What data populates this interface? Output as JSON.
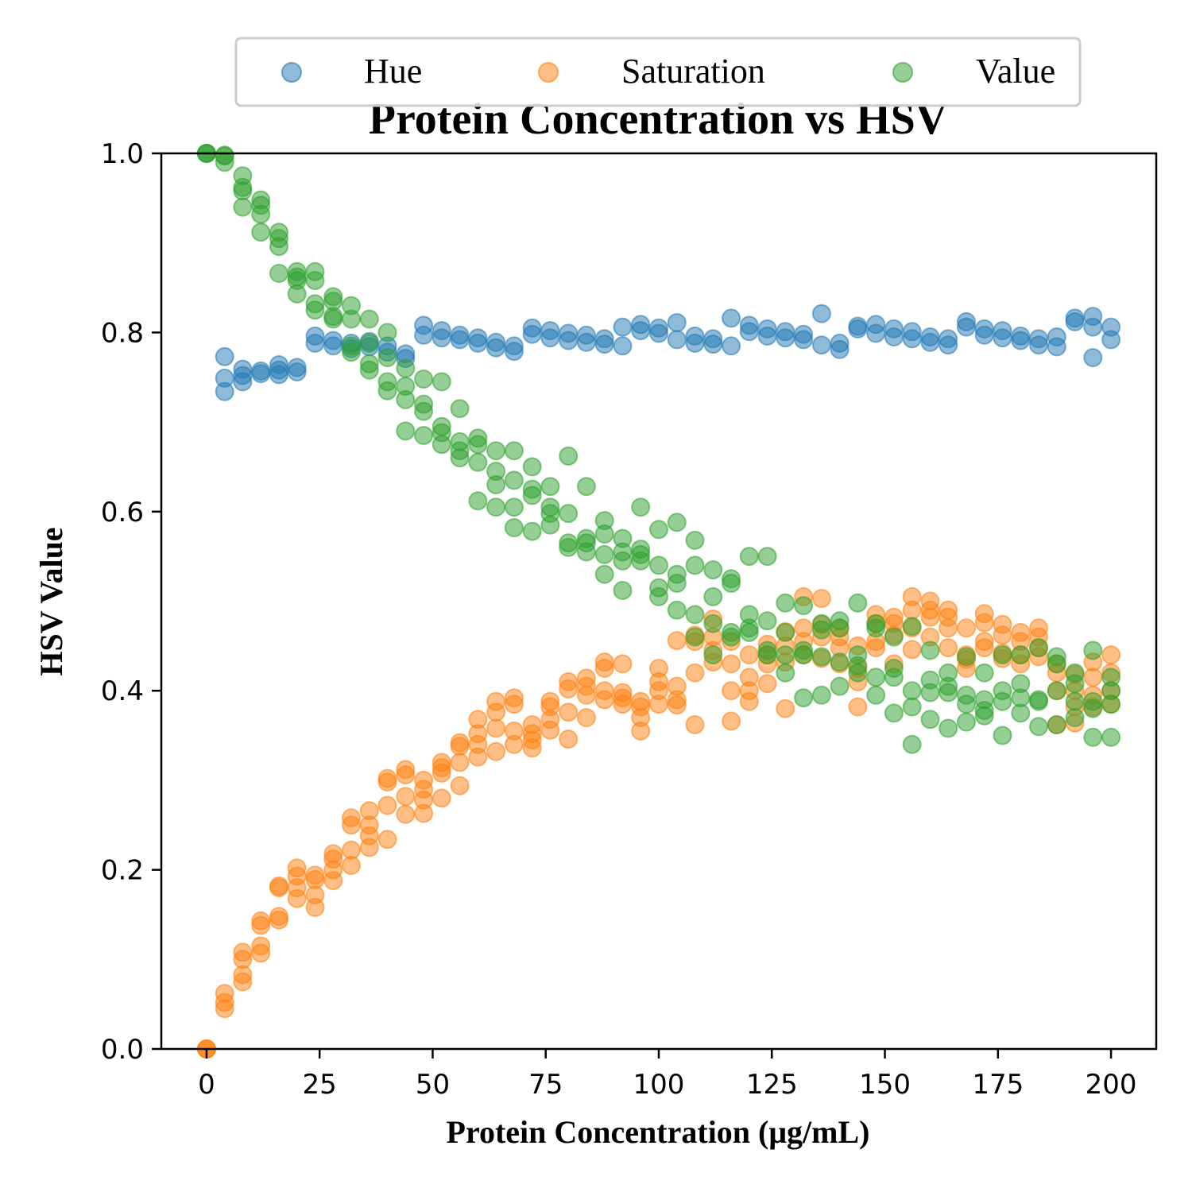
{
  "chart_data": {
    "type": "scatter",
    "title": "Protein Concentration vs HSV",
    "xlabel": "Protein Concentration (μg/mL)",
    "ylabel": "HSV Value",
    "xlim": [
      -10,
      210
    ],
    "ylim": [
      0.0,
      1.0
    ],
    "xticks": [
      0,
      25,
      50,
      75,
      100,
      125,
      150,
      175,
      200
    ],
    "yticks": [
      0.0,
      0.2,
      0.4,
      0.6,
      0.8,
      1.0
    ],
    "ytick_labels": [
      "0.0",
      "0.2",
      "0.4",
      "0.6",
      "0.8",
      "1.0"
    ],
    "grid": false,
    "legend_position": "top-center",
    "series": [
      {
        "name": "Hue",
        "color": "#1f77b4",
        "x": [
          4,
          4,
          4,
          8,
          8,
          8,
          12,
          12,
          16,
          16,
          16,
          20,
          20,
          24,
          24,
          28,
          28,
          32,
          32,
          36,
          36,
          40,
          40,
          44,
          44,
          48,
          48,
          52,
          52,
          56,
          56,
          60,
          60,
          64,
          64,
          68,
          68,
          72,
          72,
          76,
          76,
          80,
          80,
          84,
          84,
          88,
          88,
          92,
          92,
          96,
          96,
          100,
          100,
          104,
          104,
          108,
          108,
          112,
          112,
          116,
          116,
          120,
          120,
          124,
          124,
          128,
          128,
          132,
          132,
          136,
          136,
          140,
          140,
          144,
          144,
          148,
          148,
          152,
          152,
          156,
          156,
          160,
          160,
          164,
          164,
          168,
          168,
          172,
          172,
          176,
          176,
          180,
          180,
          184,
          184,
          188,
          188,
          192,
          192,
          196,
          196,
          196,
          200,
          200
        ],
        "y": [
          0.773,
          0.749,
          0.734,
          0.759,
          0.752,
          0.745,
          0.757,
          0.754,
          0.764,
          0.758,
          0.753,
          0.761,
          0.756,
          0.796,
          0.788,
          0.791,
          0.785,
          0.788,
          0.782,
          0.79,
          0.784,
          0.785,
          0.778,
          0.776,
          0.771,
          0.808,
          0.797,
          0.802,
          0.794,
          0.797,
          0.792,
          0.794,
          0.788,
          0.789,
          0.783,
          0.785,
          0.779,
          0.805,
          0.798,
          0.802,
          0.794,
          0.799,
          0.791,
          0.797,
          0.789,
          0.793,
          0.787,
          0.806,
          0.785,
          0.809,
          0.802,
          0.805,
          0.799,
          0.811,
          0.792,
          0.796,
          0.788,
          0.793,
          0.787,
          0.816,
          0.785,
          0.808,
          0.801,
          0.804,
          0.796,
          0.801,
          0.794,
          0.798,
          0.792,
          0.821,
          0.786,
          0.788,
          0.781,
          0.807,
          0.804,
          0.809,
          0.799,
          0.804,
          0.795,
          0.801,
          0.793,
          0.795,
          0.789,
          0.793,
          0.786,
          0.812,
          0.806,
          0.804,
          0.797,
          0.802,
          0.794,
          0.796,
          0.791,
          0.793,
          0.786,
          0.795,
          0.784,
          0.816,
          0.812,
          0.818,
          0.806,
          0.772,
          0.806,
          0.792
        ]
      },
      {
        "name": "Saturation",
        "color": "#ff7f0e",
        "x": [
          0,
          0,
          0,
          4,
          4,
          4,
          8,
          8,
          8,
          8,
          12,
          12,
          12,
          12,
          16,
          16,
          16,
          16,
          20,
          20,
          20,
          20,
          24,
          24,
          24,
          24,
          28,
          28,
          28,
          28,
          32,
          32,
          32,
          32,
          36,
          36,
          36,
          36,
          40,
          40,
          40,
          40,
          44,
          44,
          44,
          44,
          48,
          48,
          48,
          48,
          52,
          52,
          52,
          52,
          56,
          56,
          56,
          56,
          60,
          60,
          60,
          60,
          64,
          64,
          64,
          64,
          68,
          68,
          68,
          68,
          72,
          72,
          72,
          72,
          76,
          76,
          76,
          76,
          80,
          80,
          80,
          80,
          84,
          84,
          84,
          84,
          88,
          88,
          88,
          88,
          92,
          92,
          92,
          92,
          96,
          96,
          96,
          96,
          100,
          100,
          100,
          100,
          104,
          104,
          104,
          104,
          108,
          108,
          108,
          108,
          112,
          112,
          112,
          112,
          116,
          116,
          116,
          116,
          120,
          120,
          120,
          120,
          124,
          124,
          124,
          124,
          128,
          128,
          128,
          128,
          132,
          132,
          132,
          132,
          136,
          136,
          136,
          136,
          140,
          140,
          140,
          140,
          144,
          144,
          144,
          144,
          148,
          148,
          148,
          148,
          152,
          152,
          152,
          152,
          156,
          156,
          156,
          156,
          160,
          160,
          160,
          160,
          164,
          164,
          164,
          164,
          168,
          168,
          168,
          168,
          172,
          172,
          172,
          172,
          176,
          176,
          176,
          176,
          180,
          180,
          180,
          180,
          184,
          184,
          184,
          184,
          188,
          188,
          188,
          188,
          192,
          192,
          192,
          192,
          196,
          196,
          196,
          196,
          200,
          200,
          200,
          200
        ],
        "y": [
          0.0,
          0.0,
          0.0,
          0.062,
          0.052,
          0.045,
          0.108,
          0.1,
          0.083,
          0.075,
          0.143,
          0.138,
          0.115,
          0.107,
          0.182,
          0.18,
          0.148,
          0.144,
          0.202,
          0.193,
          0.18,
          0.168,
          0.194,
          0.189,
          0.172,
          0.158,
          0.218,
          0.212,
          0.2,
          0.188,
          0.258,
          0.25,
          0.222,
          0.205,
          0.266,
          0.25,
          0.238,
          0.225,
          0.302,
          0.298,
          0.272,
          0.234,
          0.312,
          0.306,
          0.282,
          0.262,
          0.3,
          0.29,
          0.278,
          0.263,
          0.32,
          0.314,
          0.308,
          0.28,
          0.342,
          0.338,
          0.32,
          0.294,
          0.368,
          0.352,
          0.34,
          0.326,
          0.388,
          0.376,
          0.358,
          0.332,
          0.392,
          0.385,
          0.355,
          0.34,
          0.362,
          0.352,
          0.345,
          0.336,
          0.388,
          0.382,
          0.368,
          0.356,
          0.41,
          0.402,
          0.376,
          0.346,
          0.414,
          0.405,
          0.395,
          0.37,
          0.432,
          0.425,
          0.4,
          0.39,
          0.43,
          0.398,
          0.392,
          0.385,
          0.388,
          0.382,
          0.37,
          0.355,
          0.425,
          0.41,
          0.4,
          0.385,
          0.456,
          0.405,
          0.39,
          0.384,
          0.462,
          0.455,
          0.42,
          0.362,
          0.48,
          0.46,
          0.445,
          0.432,
          0.455,
          0.43,
          0.4,
          0.366,
          0.44,
          0.415,
          0.4,
          0.388,
          0.452,
          0.44,
          0.43,
          0.408,
          0.466,
          0.45,
          0.432,
          0.38,
          0.505,
          0.47,
          0.455,
          0.44,
          0.503,
          0.474,
          0.46,
          0.436,
          0.47,
          0.46,
          0.448,
          0.43,
          0.45,
          0.425,
          0.41,
          0.382,
          0.485,
          0.475,
          0.455,
          0.448,
          0.482,
          0.475,
          0.462,
          0.43,
          0.505,
          0.49,
          0.47,
          0.446,
          0.5,
          0.49,
          0.482,
          0.46,
          0.49,
          0.482,
          0.47,
          0.448,
          0.47,
          0.44,
          0.435,
          0.425,
          0.486,
          0.476,
          0.455,
          0.448,
          0.474,
          0.462,
          0.442,
          0.436,
          0.465,
          0.455,
          0.44,
          0.43,
          0.47,
          0.46,
          0.448,
          0.438,
          0.43,
          0.42,
          0.4,
          0.362,
          0.418,
          0.4,
          0.382,
          0.364,
          0.432,
          0.415,
          0.395,
          0.382,
          0.44,
          0.42,
          0.4,
          0.385
        ]
      },
      {
        "name": "Value",
        "color": "#2ca02c",
        "x": [
          0,
          0,
          0,
          4,
          4,
          4,
          8,
          8,
          8,
          8,
          12,
          12,
          12,
          12,
          16,
          16,
          16,
          16,
          20,
          20,
          20,
          20,
          24,
          24,
          24,
          24,
          28,
          28,
          28,
          28,
          32,
          32,
          32,
          32,
          36,
          36,
          36,
          36,
          40,
          40,
          40,
          40,
          44,
          44,
          44,
          44,
          48,
          48,
          48,
          48,
          52,
          52,
          52,
          52,
          56,
          56,
          56,
          56,
          60,
          60,
          60,
          60,
          64,
          64,
          64,
          64,
          68,
          68,
          68,
          68,
          72,
          72,
          72,
          72,
          76,
          76,
          76,
          76,
          80,
          80,
          80,
          80,
          84,
          84,
          84,
          84,
          88,
          88,
          88,
          88,
          92,
          92,
          92,
          92,
          96,
          96,
          96,
          96,
          100,
          100,
          100,
          100,
          104,
          104,
          104,
          104,
          108,
          108,
          108,
          108,
          112,
          112,
          112,
          112,
          116,
          116,
          116,
          116,
          120,
          120,
          120,
          120,
          124,
          124,
          124,
          124,
          128,
          128,
          128,
          128,
          132,
          132,
          132,
          132,
          136,
          136,
          136,
          136,
          140,
          140,
          140,
          140,
          144,
          144,
          144,
          144,
          148,
          148,
          148,
          148,
          152,
          152,
          152,
          152,
          156,
          156,
          156,
          156,
          160,
          160,
          160,
          160,
          164,
          164,
          164,
          164,
          168,
          168,
          168,
          168,
          172,
          172,
          172,
          172,
          176,
          176,
          176,
          176,
          180,
          180,
          180,
          180,
          184,
          184,
          184,
          184,
          188,
          188,
          188,
          188,
          192,
          192,
          192,
          192,
          196,
          196,
          196,
          196,
          200,
          200,
          200,
          200
        ],
        "y": [
          1.0,
          1.0,
          1.0,
          0.998,
          0.997,
          0.99,
          0.975,
          0.962,
          0.958,
          0.94,
          0.948,
          0.942,
          0.932,
          0.912,
          0.912,
          0.905,
          0.896,
          0.866,
          0.868,
          0.862,
          0.858,
          0.843,
          0.868,
          0.858,
          0.832,
          0.825,
          0.84,
          0.835,
          0.818,
          0.815,
          0.83,
          0.815,
          0.785,
          0.778,
          0.815,
          0.788,
          0.765,
          0.758,
          0.8,
          0.772,
          0.745,
          0.735,
          0.76,
          0.74,
          0.725,
          0.69,
          0.748,
          0.72,
          0.712,
          0.685,
          0.745,
          0.695,
          0.688,
          0.675,
          0.715,
          0.678,
          0.668,
          0.66,
          0.682,
          0.675,
          0.655,
          0.612,
          0.668,
          0.645,
          0.63,
          0.605,
          0.668,
          0.635,
          0.605,
          0.582,
          0.65,
          0.625,
          0.618,
          0.578,
          0.628,
          0.605,
          0.598,
          0.585,
          0.662,
          0.598,
          0.565,
          0.56,
          0.628,
          0.57,
          0.565,
          0.555,
          0.59,
          0.575,
          0.552,
          0.53,
          0.57,
          0.555,
          0.545,
          0.512,
          0.605,
          0.558,
          0.552,
          0.545,
          0.58,
          0.54,
          0.515,
          0.505,
          0.588,
          0.53,
          0.52,
          0.49,
          0.568,
          0.54,
          0.485,
          0.46,
          0.535,
          0.505,
          0.475,
          0.44,
          0.525,
          0.52,
          0.465,
          0.46,
          0.55,
          0.485,
          0.47,
          0.465,
          0.55,
          0.478,
          0.445,
          0.44,
          0.498,
          0.465,
          0.44,
          0.42,
          0.495,
          0.445,
          0.44,
          0.392,
          0.475,
          0.468,
          0.438,
          0.395,
          0.478,
          0.47,
          0.432,
          0.405,
          0.498,
          0.44,
          0.428,
          0.42,
          0.475,
          0.47,
          0.415,
          0.395,
          0.46,
          0.425,
          0.415,
          0.375,
          0.472,
          0.4,
          0.382,
          0.34,
          0.445,
          0.412,
          0.398,
          0.368,
          0.42,
          0.405,
          0.398,
          0.358,
          0.438,
          0.395,
          0.385,
          0.365,
          0.42,
          0.39,
          0.378,
          0.372,
          0.44,
          0.4,
          0.388,
          0.35,
          0.44,
          0.408,
          0.392,
          0.375,
          0.448,
          0.39,
          0.388,
          0.36,
          0.438,
          0.43,
          0.4,
          0.362,
          0.42,
          0.408,
          0.388,
          0.37,
          0.445,
          0.388,
          0.38,
          0.348,
          0.415,
          0.4,
          0.385,
          0.348
        ]
      }
    ]
  }
}
